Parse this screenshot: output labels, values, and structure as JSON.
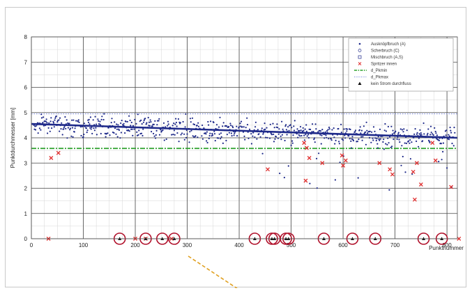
{
  "chart_data": {
    "type": "scatter",
    "xlabel": "Punktnummer",
    "ylabel": "Punktdurchmesser [mm]",
    "xlim": [
      0,
      820
    ],
    "ylim": [
      0,
      8
    ],
    "x_ticks": [
      "0",
      "100",
      "200",
      "300",
      "400",
      "500",
      "600",
      "700",
      "800"
    ],
    "y_ticks": [
      "0",
      "1",
      "2",
      "3",
      "4",
      "5",
      "6",
      "7",
      "8"
    ],
    "grid": true,
    "legend_position": "top-right",
    "colors": {
      "dots": "#1f2a8a",
      "spikes": "#e03030",
      "minimum": "#2aa02a",
      "maximum": "#8090e0",
      "circle": "#b0102a",
      "arrow": "#e0a020"
    },
    "legend": [
      {
        "label": "Ausknöpfbruch (A)",
        "marker": "dot"
      },
      {
        "label": "Scherbruch (C)",
        "marker": "open-circle"
      },
      {
        "label": "Mischbruch (A,S)",
        "marker": "open-square"
      },
      {
        "label": "Spritzer innen",
        "marker": "x"
      },
      {
        "label": "d_Pkmin",
        "marker": "dashdot-green"
      },
      {
        "label": "d_Pkmax",
        "marker": "dotted-blue"
      },
      {
        "label": "kein Strom durchfluss",
        "marker": "triangle"
      }
    ],
    "series": [
      {
        "name": "Ausknöpfbruch (A)",
        "trend": [
          [
            0,
            4.55
          ],
          [
            820,
            4.0
          ]
        ],
        "band": [
          3.6,
          5.0
        ]
      },
      {
        "name": "d_Pkmin",
        "y": 3.58
      },
      {
        "name": "d_Pkmax",
        "y": 4.95
      },
      {
        "name": "Spritzer innen",
        "points": [
          [
            33,
            0
          ],
          [
            38,
            3.2
          ],
          [
            52,
            3.4
          ],
          [
            200,
            0
          ],
          [
            220,
            0
          ],
          [
            270,
            0
          ],
          [
            455,
            2.75
          ],
          [
            525,
            3.8
          ],
          [
            528,
            2.3
          ],
          [
            530,
            3.6
          ],
          [
            535,
            3.2
          ],
          [
            560,
            3.0
          ],
          [
            598,
            3.3
          ],
          [
            600,
            2.9
          ],
          [
            605,
            3.1
          ],
          [
            670,
            3.0
          ],
          [
            690,
            2.75
          ],
          [
            695,
            2.55
          ],
          [
            735,
            2.65
          ],
          [
            738,
            1.55
          ],
          [
            742,
            3.0
          ],
          [
            750,
            2.15
          ],
          [
            772,
            3.8
          ],
          [
            778,
            3.1
          ],
          [
            808,
            2.05
          ],
          [
            823,
            0
          ]
        ]
      },
      {
        "name": "kein Strom durchfluss",
        "points": [
          [
            170,
            0
          ],
          [
            220,
            0
          ],
          [
            252,
            0
          ],
          [
            275,
            0
          ],
          [
            430,
            0
          ],
          [
            463,
            0
          ],
          [
            468,
            0
          ],
          [
            490,
            0
          ],
          [
            495,
            0
          ],
          [
            563,
            0
          ],
          [
            618,
            0
          ],
          [
            662,
            0
          ],
          [
            755,
            0
          ],
          [
            790,
            0
          ]
        ]
      }
    ],
    "highlighted_x": [
      170,
      220,
      252,
      275,
      430,
      463,
      468,
      490,
      495,
      563,
      618,
      662,
      755,
      790
    ]
  }
}
